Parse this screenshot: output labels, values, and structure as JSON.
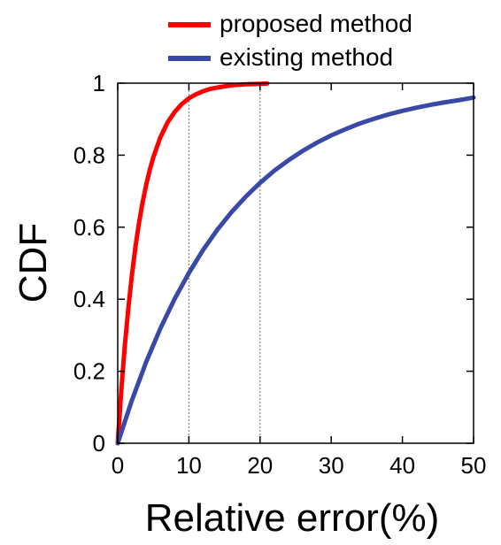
{
  "chart_data": {
    "type": "line",
    "title": "",
    "xlabel": "Relative error(%)",
    "ylabel": "CDF",
    "xlim": [
      0,
      50
    ],
    "ylim": [
      0,
      1
    ],
    "x_ticks": [
      0,
      10,
      20,
      30,
      40,
      50
    ],
    "y_ticks": [
      0,
      0.2,
      0.4,
      0.6,
      0.8,
      1
    ],
    "x_tick_labels": [
      "0",
      "10",
      "20",
      "30",
      "40",
      "50"
    ],
    "y_tick_labels": [
      "0",
      "0.2",
      "0.4",
      "0.6",
      "0.8",
      "1"
    ],
    "grid": false,
    "reference_lines_x": [
      10,
      20
    ],
    "legend_position": "top-right, above plot",
    "series": [
      {
        "name": "proposed method",
        "color": "#ff0000",
        "x": [
          0,
          0.5,
          1,
          1.5,
          2,
          2.5,
          3,
          3.5,
          4,
          4.5,
          5,
          6,
          7,
          8,
          9,
          10,
          11,
          12,
          13,
          14,
          16,
          18,
          20,
          21
        ],
        "y": [
          0,
          0.146,
          0.271,
          0.378,
          0.469,
          0.547,
          0.613,
          0.669,
          0.718,
          0.759,
          0.794,
          0.85,
          0.891,
          0.92,
          0.942,
          0.958,
          0.969,
          0.978,
          0.984,
          0.988,
          0.994,
          0.997,
          0.998,
          0.999
        ]
      },
      {
        "name": "existing method",
        "color": "#3a48a8",
        "x": [
          0,
          2,
          4,
          6,
          8,
          10,
          12,
          14,
          16,
          18,
          20,
          22,
          24,
          26,
          28,
          30,
          32,
          34,
          36,
          38,
          40,
          42,
          44,
          46,
          48,
          50
        ],
        "y": [
          0,
          0.12,
          0.226,
          0.319,
          0.401,
          0.473,
          0.537,
          0.593,
          0.642,
          0.685,
          0.723,
          0.757,
          0.786,
          0.812,
          0.835,
          0.855,
          0.872,
          0.888,
          0.901,
          0.913,
          0.923,
          0.932,
          0.94,
          0.947,
          0.953,
          0.96
        ]
      }
    ]
  }
}
